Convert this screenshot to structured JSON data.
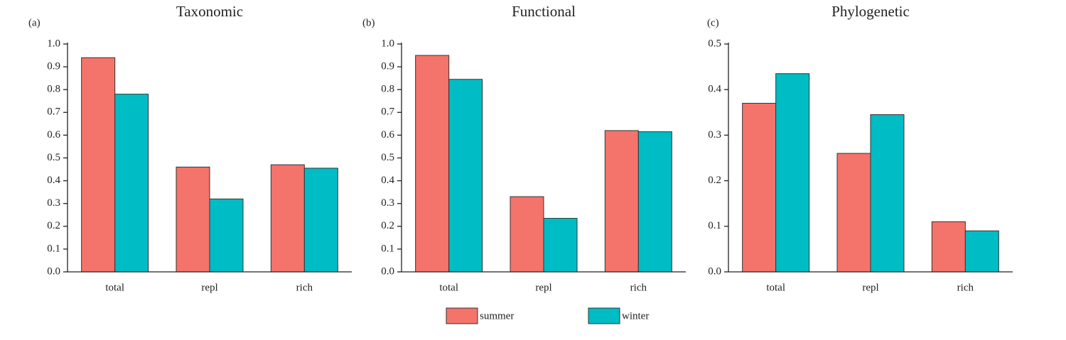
{
  "chart_data": [
    {
      "type": "bar",
      "label": "(a)",
      "title": "Taxonomic",
      "categories": [
        "total",
        "repl",
        "rich"
      ],
      "series": [
        {
          "name": "summer",
          "color": "#f4736b",
          "values": [
            0.94,
            0.46,
            0.47
          ]
        },
        {
          "name": "winter",
          "color": "#00bcc4",
          "values": [
            0.78,
            0.32,
            0.455
          ]
        }
      ],
      "ylim": [
        0,
        1.0
      ],
      "yticks": [
        {
          "value": 0,
          "label": "0.0"
        },
        0.1,
        0.2,
        0.3,
        0.4,
        0.5,
        0.6,
        0.7,
        0.8,
        0.9,
        {
          "value": 1,
          "label": "1.0"
        }
      ]
    },
    {
      "type": "bar",
      "label": "(b)",
      "title": "Functional",
      "categories": [
        "total",
        "repl",
        "rich"
      ],
      "series": [
        {
          "name": "summer",
          "color": "#f4736b",
          "values": [
            0.95,
            0.33,
            0.62
          ]
        },
        {
          "name": "winter",
          "color": "#00bcc4",
          "values": [
            0.845,
            0.235,
            0.615
          ]
        }
      ],
      "ylim": [
        0,
        1.0
      ],
      "yticks": [
        {
          "value": 0,
          "label": "0.0"
        },
        0.1,
        0.2,
        0.3,
        0.4,
        0.5,
        0.6,
        0.7,
        0.8,
        0.9,
        {
          "value": 1,
          "label": "1.0"
        }
      ]
    },
    {
      "type": "bar",
      "label": "(c)",
      "title": "Phylogenetic",
      "categories": [
        "total",
        "repl",
        "rich"
      ],
      "series": [
        {
          "name": "summer",
          "color": "#f4736b",
          "values": [
            0.37,
            0.26,
            0.11
          ]
        },
        {
          "name": "winter",
          "color": "#00bcc4",
          "values": [
            0.435,
            0.345,
            0.09
          ]
        }
      ],
      "ylim": [
        0,
        0.5
      ],
      "yticks": [
        {
          "value": 0,
          "label": "0.0"
        },
        0.1,
        0.2,
        0.3,
        0.4,
        0.5
      ]
    }
  ]
}
